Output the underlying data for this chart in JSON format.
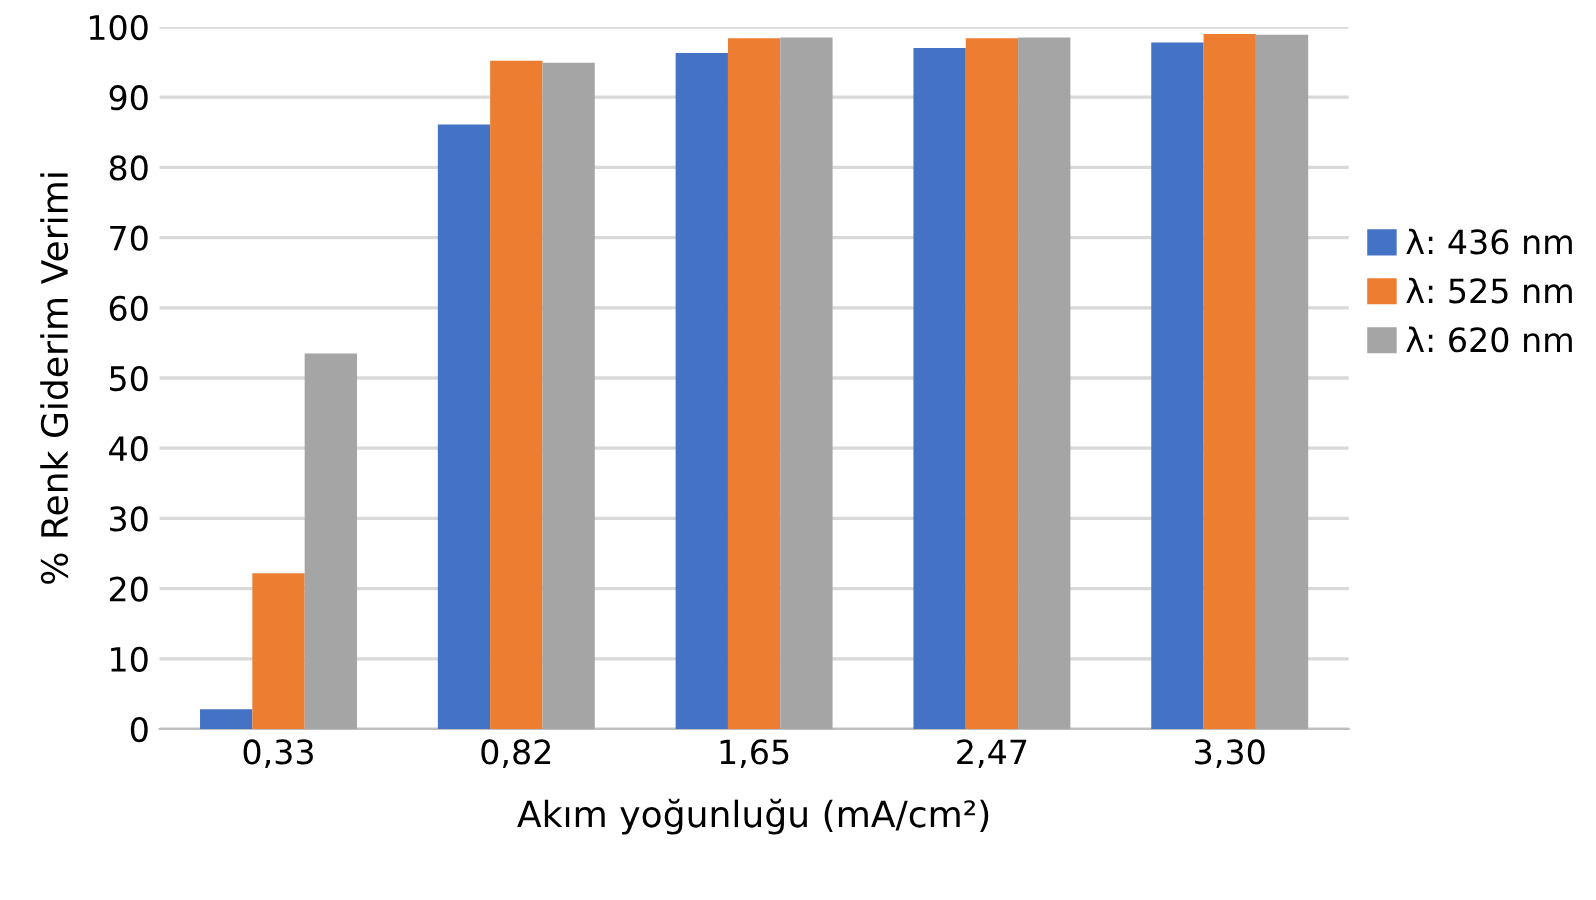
{
  "chart_data": {
    "type": "bar",
    "xlabel": "Akım yoğunluğu (mA/cm²)",
    "ylabel": "% Renk Giderim Verimi",
    "categories": [
      "0,33",
      "0,82",
      "1,65",
      "2,47",
      "3,30"
    ],
    "series": [
      {
        "name": "λ: 436 nm",
        "color": "#4472c4",
        "values": [
          2.8,
          86.1,
          96.3,
          97.0,
          97.8
        ]
      },
      {
        "name": "λ: 525 nm",
        "color": "#ed7d31",
        "values": [
          22.2,
          95.2,
          98.4,
          98.4,
          99.0
        ]
      },
      {
        "name": "λ: 620 nm",
        "color": "#a5a5a5",
        "values": [
          53.5,
          94.9,
          98.5,
          98.5,
          98.9
        ]
      }
    ],
    "ylim": [
      0,
      100
    ],
    "yticks": [
      0,
      10,
      20,
      30,
      40,
      50,
      60,
      70,
      80,
      90,
      100
    ],
    "grid": "y",
    "legend": "right"
  }
}
